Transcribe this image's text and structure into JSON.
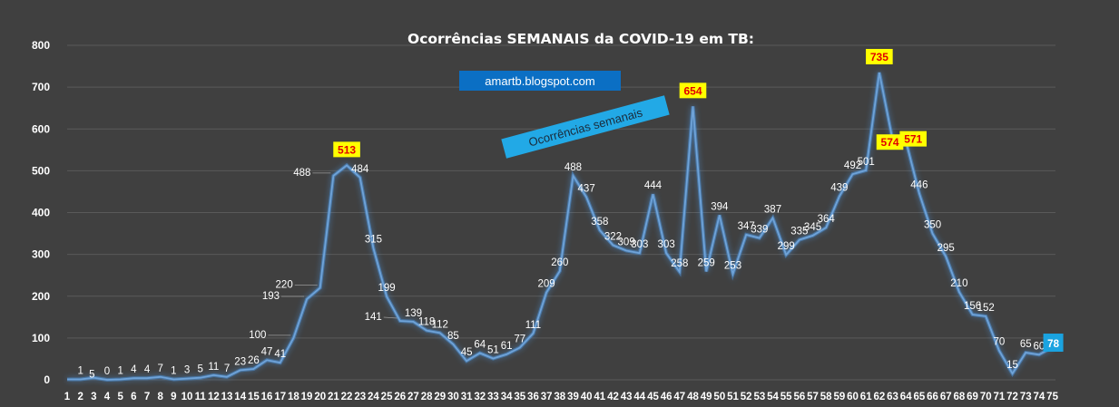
{
  "page": {
    "background": "#404040"
  },
  "colors": {
    "line": "#6fa3d8",
    "glow": "#4d8fd6",
    "grid": "#5a5a5a",
    "highlight_fill": "#ffff00",
    "highlight_text": "#e00000",
    "last_fill": "#1aa3e0",
    "blog_box": "#0b6fc4",
    "tag_box": "#22a9e6",
    "leader": "#9a9a9a"
  },
  "annotations": {
    "blog": "amartb.blogspot.com",
    "series_tag": "Ocorrências semanais"
  },
  "chart_data": {
    "type": "line",
    "title": "Ocorrências SEMANAIS da COVID-19 em TB:",
    "xlabel": "",
    "ylabel": "",
    "ylim": [
      0,
      800
    ],
    "yticks": [
      0,
      100,
      200,
      300,
      400,
      500,
      600,
      700,
      800
    ],
    "grid": true,
    "legend": "none",
    "x": [
      1,
      2,
      3,
      4,
      5,
      6,
      7,
      8,
      9,
      10,
      11,
      12,
      13,
      14,
      15,
      16,
      17,
      18,
      19,
      20,
      21,
      22,
      23,
      24,
      25,
      26,
      27,
      28,
      29,
      30,
      31,
      32,
      33,
      34,
      35,
      36,
      37,
      38,
      39,
      40,
      41,
      42,
      43,
      44,
      45,
      46,
      47,
      48,
      49,
      50,
      51,
      52,
      53,
      54,
      55,
      56,
      57,
      58,
      59,
      60,
      61,
      62,
      63,
      64,
      65,
      66,
      67,
      68,
      69,
      70,
      71,
      72,
      73,
      74,
      75
    ],
    "values": [
      1,
      1,
      5,
      0,
      1,
      4,
      4,
      7,
      1,
      3,
      5,
      11,
      7,
      23,
      26,
      47,
      41,
      100,
      193,
      220,
      488,
      513,
      484,
      315,
      199,
      141,
      139,
      118,
      112,
      85,
      45,
      64,
      51,
      61,
      77,
      111,
      209,
      260,
      488,
      437,
      358,
      322,
      309,
      303,
      444,
      303,
      258,
      654,
      259,
      394,
      253,
      347,
      339,
      387,
      299,
      335,
      345,
      364,
      439,
      492,
      501,
      735,
      574,
      571,
      446,
      350,
      295,
      210,
      156,
      152,
      70,
      15,
      65,
      60,
      78
    ],
    "data_labels": [
      "",
      "1",
      "5",
      "0",
      "1",
      "4",
      "4",
      "7",
      "1",
      "3",
      "5",
      "11",
      "7",
      "23",
      "26",
      "47",
      "41",
      "100",
      "193",
      "220",
      "488",
      "513",
      "484",
      "315",
      "199",
      "141",
      "139",
      "118",
      "112",
      "85",
      "45",
      "64",
      "51",
      "61",
      "77",
      "111",
      "209",
      "260",
      "488",
      "437",
      "358",
      "322",
      "309",
      "303",
      "444",
      "303",
      "258",
      "654",
      "259",
      "394",
      "253",
      "347",
      "339",
      "387",
      "299",
      "335",
      "345",
      "364",
      "439",
      "492",
      "501",
      "735",
      "574",
      "571",
      "446",
      "350",
      "295",
      "210",
      "156",
      "152",
      "70",
      "15",
      "65",
      "60",
      "78"
    ],
    "highlighted_x": [
      22,
      48,
      62,
      63,
      64
    ],
    "last_x": 75
  }
}
